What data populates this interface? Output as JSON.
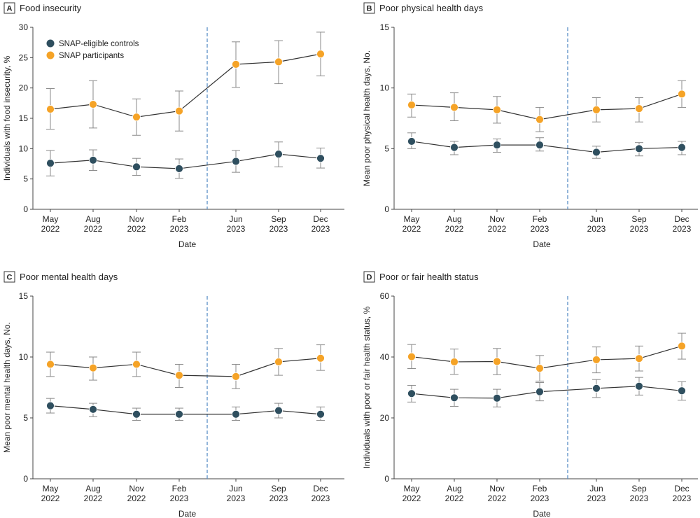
{
  "figure": {
    "legend": [
      {
        "name": "SNAP-eligible controls",
        "color": "#2f4f5f"
      },
      {
        "name": "SNAP participants",
        "color": "#f5a327"
      }
    ]
  },
  "colors": {
    "controls": "#2f4f5f",
    "participants": "#f5a327",
    "error_bar": "#8a8a8a",
    "line": "#333333",
    "divider": "#5a8fc7"
  },
  "chart_data": [
    {
      "type": "line",
      "letter": "A",
      "title": "Food insecurity",
      "xlabel": "Date",
      "ylabel": "Individuals with food insecurity, %",
      "ylim": [
        0,
        30
      ],
      "yticks": [
        0,
        5,
        10,
        15,
        20,
        25,
        30
      ],
      "x_tick_labels": [
        [
          "May",
          "2022"
        ],
        [
          "Aug",
          "2022"
        ],
        [
          "Nov",
          "2022"
        ],
        [
          "Feb",
          "2023"
        ],
        [
          "Jun",
          "2023"
        ],
        [
          "Sep",
          "2023"
        ],
        [
          "Dec",
          "2023"
        ]
      ],
      "divider_between": [
        3,
        4
      ],
      "series": [
        {
          "name": "SNAP participants",
          "values": [
            16.5,
            17.3,
            15.2,
            16.2,
            23.9,
            24.3,
            25.6
          ],
          "lower": [
            13.2,
            13.4,
            12.2,
            12.9,
            20.1,
            20.7,
            22.0
          ],
          "upper": [
            19.9,
            21.2,
            18.2,
            19.5,
            27.6,
            27.8,
            29.2
          ]
        },
        {
          "name": "SNAP-eligible controls",
          "values": [
            7.6,
            8.1,
            7.0,
            6.7,
            7.9,
            9.1,
            8.4
          ],
          "lower": [
            5.5,
            6.4,
            5.6,
            5.1,
            6.1,
            7.0,
            6.8
          ],
          "upper": [
            9.7,
            9.8,
            8.4,
            8.3,
            9.7,
            11.1,
            10.1
          ]
        }
      ]
    },
    {
      "type": "line",
      "letter": "B",
      "title": "Poor physical health days",
      "xlabel": "Date",
      "ylabel": "Mean poor physical health days, No.",
      "ylim": [
        0,
        15
      ],
      "yticks": [
        0,
        5,
        10,
        15
      ],
      "x_tick_labels": [
        [
          "May",
          "2022"
        ],
        [
          "Aug",
          "2022"
        ],
        [
          "Nov",
          "2022"
        ],
        [
          "Feb",
          "2023"
        ],
        [
          "Jun",
          "2023"
        ],
        [
          "Sep",
          "2023"
        ],
        [
          "Dec",
          "2023"
        ]
      ],
      "divider_between": [
        3,
        4
      ],
      "series": [
        {
          "name": "SNAP participants",
          "values": [
            8.6,
            8.4,
            8.2,
            7.4,
            8.2,
            8.3,
            9.5
          ],
          "lower": [
            7.6,
            7.3,
            7.1,
            6.4,
            7.2,
            7.2,
            8.4
          ],
          "upper": [
            9.5,
            9.6,
            9.3,
            8.4,
            9.2,
            9.2,
            10.6
          ]
        },
        {
          "name": "SNAP-eligible controls",
          "values": [
            5.6,
            5.1,
            5.3,
            5.3,
            4.7,
            5.0,
            5.1
          ],
          "lower": [
            5.0,
            4.5,
            4.7,
            4.8,
            4.2,
            4.4,
            4.5
          ],
          "upper": [
            6.3,
            5.6,
            5.8,
            5.9,
            5.2,
            5.5,
            5.6
          ]
        }
      ]
    },
    {
      "type": "line",
      "letter": "C",
      "title": "Poor mental health days",
      "xlabel": "Date",
      "ylabel": "Mean poor mental health days, No.",
      "ylim": [
        0,
        15
      ],
      "yticks": [
        0,
        5,
        10,
        15
      ],
      "x_tick_labels": [
        [
          "May",
          "2022"
        ],
        [
          "Aug",
          "2022"
        ],
        [
          "Nov",
          "2022"
        ],
        [
          "Feb",
          "2023"
        ],
        [
          "Jun",
          "2023"
        ],
        [
          "Sep",
          "2023"
        ],
        [
          "Dec",
          "2023"
        ]
      ],
      "divider_between": [
        3,
        4
      ],
      "series": [
        {
          "name": "SNAP participants",
          "values": [
            9.4,
            9.1,
            9.4,
            8.5,
            8.4,
            9.6,
            9.9
          ],
          "lower": [
            8.4,
            8.1,
            8.4,
            7.5,
            7.4,
            8.5,
            8.9
          ],
          "upper": [
            10.4,
            10.0,
            10.4,
            9.4,
            9.4,
            10.7,
            11.0
          ]
        },
        {
          "name": "SNAP-eligible controls",
          "values": [
            6.0,
            5.7,
            5.3,
            5.3,
            5.3,
            5.6,
            5.3
          ],
          "lower": [
            5.4,
            5.1,
            4.8,
            4.8,
            4.8,
            5.0,
            4.8
          ],
          "upper": [
            6.6,
            6.2,
            5.8,
            5.8,
            5.9,
            6.2,
            5.9
          ]
        }
      ]
    },
    {
      "type": "line",
      "letter": "D",
      "title": "Poor or fair health status",
      "xlabel": "Date",
      "ylabel": "Individuals with poor or fair health status, %",
      "ylim": [
        0,
        60
      ],
      "yticks": [
        0,
        20,
        40,
        60
      ],
      "x_tick_labels": [
        [
          "May",
          "2022"
        ],
        [
          "Aug",
          "2022"
        ],
        [
          "Nov",
          "2022"
        ],
        [
          "Feb",
          "2023"
        ],
        [
          "Jun",
          "2023"
        ],
        [
          "Sep",
          "2023"
        ],
        [
          "Dec",
          "2023"
        ]
      ],
      "divider_between": [
        3,
        4
      ],
      "series": [
        {
          "name": "SNAP participants",
          "values": [
            40.1,
            38.4,
            38.5,
            36.3,
            39.1,
            39.5,
            43.6
          ],
          "lower": [
            36.2,
            34.3,
            34.2,
            32.1,
            34.8,
            35.4,
            39.3
          ],
          "upper": [
            44.1,
            42.6,
            42.8,
            40.5,
            43.3,
            43.6,
            47.8
          ]
        },
        {
          "name": "SNAP-eligible controls",
          "values": [
            28.0,
            26.6,
            26.5,
            28.6,
            29.7,
            30.4,
            28.9
          ],
          "lower": [
            25.2,
            23.8,
            23.6,
            25.6,
            26.7,
            27.5,
            25.8
          ],
          "upper": [
            30.7,
            29.4,
            29.4,
            31.6,
            32.6,
            33.3,
            31.9
          ]
        }
      ]
    }
  ]
}
